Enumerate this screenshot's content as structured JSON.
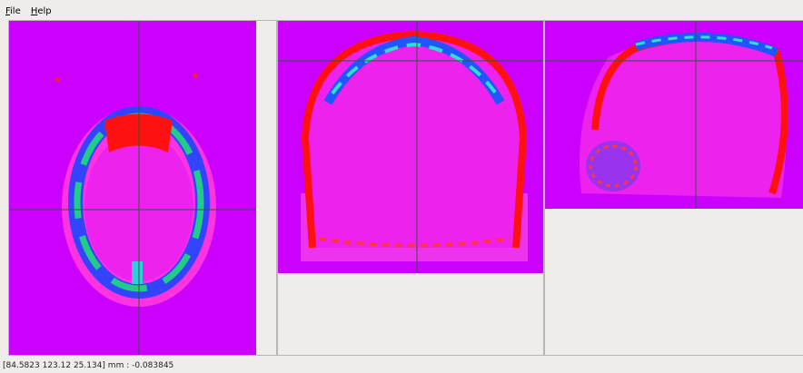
{
  "menu": {
    "items": [
      "File",
      "Help"
    ]
  },
  "status": "[84.5823 123.12 25.134] mm : -0.083845"
}
